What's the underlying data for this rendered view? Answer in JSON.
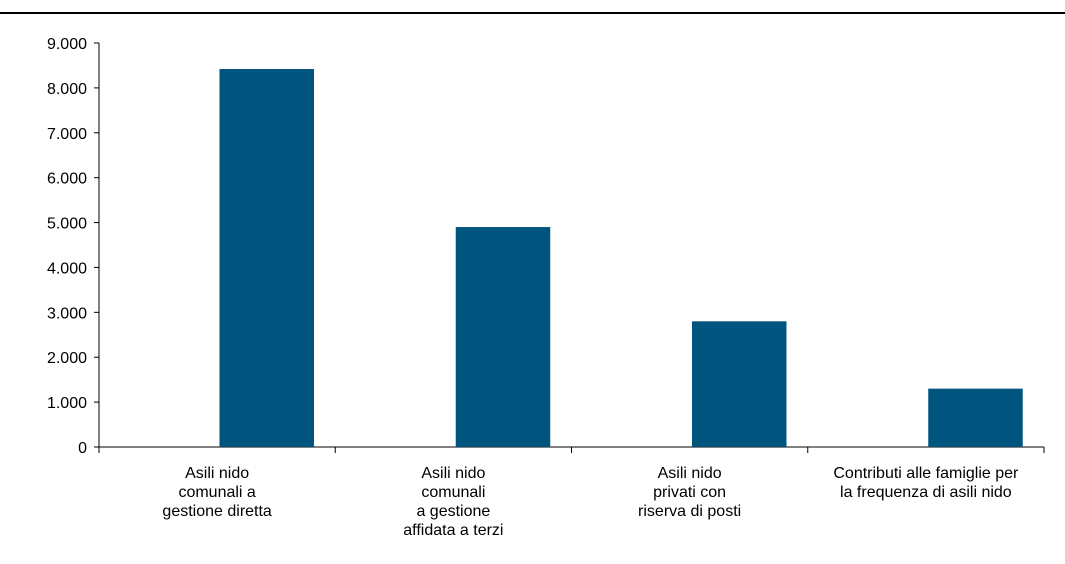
{
  "chart_data": {
    "type": "bar",
    "categories": [
      [
        "Asili nido",
        "comunali a",
        "gestione diretta"
      ],
      [
        "Asili nido",
        "comunali",
        "a gestione",
        "affidata a terzi"
      ],
      [
        "Asili nido",
        "privati con",
        "riserva di posti"
      ],
      [
        "Contributi alle famiglie per",
        "la frequenza di asili nido"
      ]
    ],
    "values": [
      8420,
      4900,
      2800,
      1300
    ],
    "ylim": [
      0,
      9000
    ],
    "yticks": [
      0,
      1000,
      2000,
      3000,
      4000,
      5000,
      6000,
      7000,
      8000,
      9000
    ],
    "ytick_labels": [
      "0",
      "1.000",
      "2.000",
      "3.000",
      "4.000",
      "5.000",
      "6.000",
      "7.000",
      "8.000",
      "9.000"
    ],
    "bar_color": "#00557F",
    "grid": false,
    "title": "",
    "xlabel": "",
    "ylabel": ""
  }
}
